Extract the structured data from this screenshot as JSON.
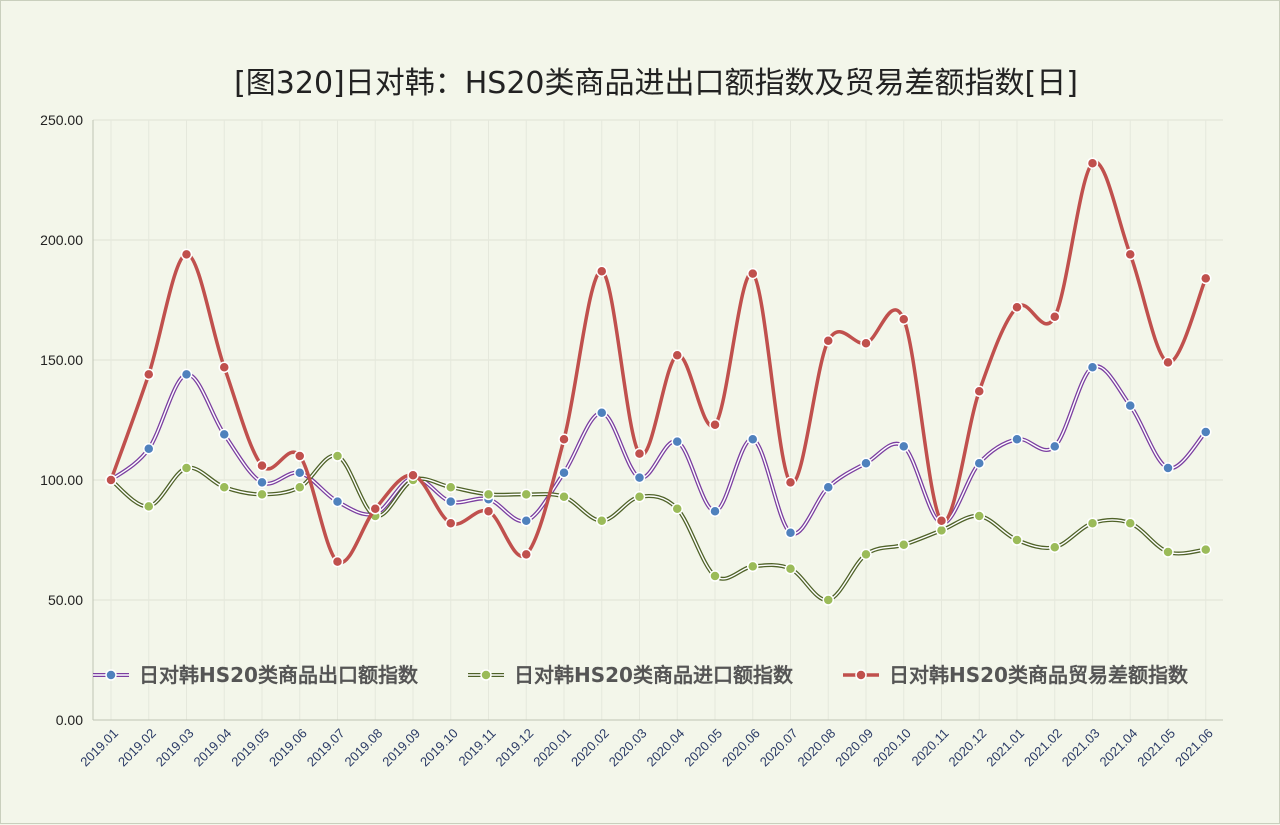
{
  "chart_data": {
    "type": "line",
    "title": "[图320]日对韩：HS20类商品进出口额指数及贸易差额指数[日]",
    "xlabel": "",
    "ylabel": "",
    "ylim": [
      0,
      250
    ],
    "yticks": [
      "0.00",
      "50.00",
      "100.00",
      "150.00",
      "200.00",
      "250.00"
    ],
    "grid": true,
    "legend_position": "bottom-inside",
    "categories": [
      "2019.01",
      "2019.02",
      "2019.03",
      "2019.04",
      "2019.05",
      "2019.06",
      "2019.07",
      "2019.08",
      "2019.09",
      "2019.10",
      "2019.11",
      "2019.12",
      "2020.01",
      "2020.02",
      "2020.03",
      "2020.04",
      "2020.05",
      "2020.06",
      "2020.07",
      "2020.08",
      "2020.09",
      "2020.10",
      "2020.11",
      "2020.12",
      "2021.01",
      "2021.02",
      "2021.03",
      "2021.04",
      "2021.05",
      "2021.06"
    ],
    "series": [
      {
        "name": "日对韩HS20类商品出口额指数",
        "color": "#7b3fa0",
        "marker_color": "#4f81bd",
        "values": [
          100,
          113,
          144,
          119,
          99,
          103,
          91,
          86,
          101,
          91,
          92,
          83,
          103,
          128,
          101,
          116,
          87,
          117,
          78,
          97,
          107,
          114,
          82,
          107,
          117,
          114,
          147,
          131,
          105,
          120
        ]
      },
      {
        "name": "日对韩HS20类商品进口额指数",
        "color": "#4f6228",
        "marker_color": "#9bbb59",
        "values": [
          100,
          89,
          105,
          97,
          94,
          97,
          110,
          85,
          100,
          97,
          94,
          94,
          93,
          83,
          93,
          88,
          60,
          64,
          63,
          50,
          69,
          73,
          79,
          85,
          75,
          72,
          82,
          82,
          70,
          71
        ]
      },
      {
        "name": "日对韩HS20类商品贸易差额指数",
        "color": "#c0504d",
        "marker_color": "#c0504d",
        "values": [
          100,
          144,
          194,
          147,
          106,
          110,
          66,
          88,
          102,
          82,
          87,
          69,
          117,
          187,
          111,
          152,
          123,
          186,
          99,
          158,
          157,
          167,
          83,
          137,
          172,
          168,
          232,
          194,
          149,
          184
        ]
      }
    ]
  }
}
